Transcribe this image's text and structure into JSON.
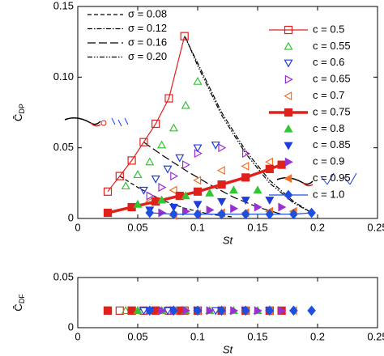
{
  "chart_data": [
    {
      "type": "scatter",
      "xlabel": "St",
      "ylabel": "C̄",
      "ylabel_sub": "DP",
      "xlim": [
        0,
        0.25
      ],
      "ylim": [
        0,
        0.15
      ],
      "xticks": [
        0,
        0.05,
        0.1,
        0.15,
        0.2,
        0.25
      ],
      "yticks": [
        0,
        0.05,
        {
          "value": 0.1,
          "label": "0.10"
        },
        0.15
      ],
      "curves": [
        {
          "name": "σ = 0.08",
          "style": "dash",
          "x": [
            0.035,
            0.05,
            0.07,
            0.09,
            0.11,
            0.13
          ],
          "values": [
            0.03,
            0.022,
            0.013,
            0.007,
            0.003,
            0.001
          ]
        },
        {
          "name": "σ = 0.12",
          "style": "dashdot",
          "x": [
            0.089,
            0.1,
            0.12,
            0.14,
            0.16,
            0.18,
            0.195
          ],
          "values": [
            0.129,
            0.11,
            0.075,
            0.048,
            0.027,
            0.012,
            0.004
          ]
        },
        {
          "name": "σ = 0.16",
          "style": "longdash",
          "x": [
            0.055,
            0.07,
            0.09,
            0.11,
            0.13,
            0.15,
            0.17
          ],
          "values": [
            0.054,
            0.045,
            0.034,
            0.024,
            0.015,
            0.008,
            0.003
          ]
        },
        {
          "name": "σ = 0.20",
          "style": "dashdotdot",
          "x": [
            0.09,
            0.1,
            0.12,
            0.14,
            0.16,
            0.18,
            0.195
          ],
          "values": [
            0.128,
            0.108,
            0.073,
            0.046,
            0.025,
            0.011,
            0.004
          ]
        }
      ],
      "series": [
        {
          "name": "c = 0.5",
          "color": "#e0201b",
          "marker": "square",
          "filled": false,
          "line": true,
          "linewidth": 1.2,
          "x": [
            0.025,
            0.035,
            0.045,
            0.055,
            0.065,
            0.076,
            0.089
          ],
          "values": [
            0.019,
            0.03,
            0.041,
            0.054,
            0.067,
            0.085,
            0.129
          ]
        },
        {
          "name": "c = 0.55",
          "color": "#33c633",
          "marker": "tri-up",
          "filled": false,
          "line": false,
          "x": [
            0.04,
            0.05,
            0.06,
            0.07,
            0.08,
            0.09,
            0.1
          ],
          "values": [
            0.023,
            0.031,
            0.04,
            0.052,
            0.064,
            0.08,
            0.097
          ]
        },
        {
          "name": "c = 0.6",
          "color": "#1e3cdc",
          "marker": "tri-down",
          "filled": false,
          "line": false,
          "x": [
            0.055,
            0.065,
            0.075,
            0.085,
            0.1,
            0.115
          ],
          "values": [
            0.02,
            0.028,
            0.035,
            0.043,
            0.05,
            0.052
          ]
        },
        {
          "name": "c = 0.65",
          "color": "#9b30d0",
          "marker": "tri-right",
          "filled": false,
          "line": false,
          "x": [
            0.06,
            0.07,
            0.08,
            0.09,
            0.1,
            0.12,
            0.14
          ],
          "values": [
            0.016,
            0.022,
            0.03,
            0.038,
            0.046,
            0.05,
            0.046
          ]
        },
        {
          "name": "c = 0.7",
          "color": "#f07020",
          "marker": "tri-left",
          "filled": false,
          "line": false,
          "x": [
            0.06,
            0.08,
            0.1,
            0.12,
            0.14,
            0.16
          ],
          "values": [
            0.012,
            0.02,
            0.027,
            0.034,
            0.037,
            0.04
          ]
        },
        {
          "name": "c = 0.75",
          "color": "#e0201b",
          "marker": "square",
          "filled": true,
          "line": true,
          "linewidth": 3.5,
          "x": [
            0.025,
            0.045,
            0.065,
            0.085,
            0.1,
            0.12,
            0.14,
            0.16,
            0.17
          ],
          "values": [
            0.004,
            0.008,
            0.012,
            0.016,
            0.019,
            0.024,
            0.029,
            0.035,
            0.038
          ]
        },
        {
          "name": "c = 0.8",
          "color": "#33c633",
          "marker": "tri-up",
          "filled": true,
          "line": false,
          "x": [
            0.05,
            0.07,
            0.09,
            0.11,
            0.13,
            0.15
          ],
          "values": [
            0.01,
            0.013,
            0.016,
            0.018,
            0.02,
            0.02
          ]
        },
        {
          "name": "c = 0.85",
          "color": "#1e3cdc",
          "marker": "tri-down",
          "filled": true,
          "line": false,
          "x": [
            0.06,
            0.08,
            0.1,
            0.12,
            0.14,
            0.16
          ],
          "values": [
            0.006,
            0.008,
            0.01,
            0.012,
            0.013,
            0.013
          ]
        },
        {
          "name": "c = 0.9",
          "color": "#9b30d0",
          "marker": "tri-right",
          "filled": true,
          "line": false,
          "x": [
            0.07,
            0.09,
            0.11,
            0.13,
            0.15,
            0.17
          ],
          "values": [
            0.004,
            0.005,
            0.006,
            0.007,
            0.008,
            0.008
          ]
        },
        {
          "name": "c = 0.95",
          "color": "#f07020",
          "marker": "tri-left",
          "filled": true,
          "line": false,
          "x": [
            0.08,
            0.1,
            0.12,
            0.14,
            0.16,
            0.18
          ],
          "values": [
            0.002,
            0.003,
            0.004,
            0.004,
            0.005,
            0.005
          ]
        },
        {
          "name": "c = 1.0",
          "color": "#1e50e0",
          "marker": "diamond",
          "filled": true,
          "line": true,
          "linewidth": 1.2,
          "x": [
            0.06,
            0.08,
            0.1,
            0.12,
            0.14,
            0.16,
            0.18,
            0.195
          ],
          "values": [
            0.004,
            0.003,
            0.003,
            0.003,
            0.003,
            0.003,
            0.003,
            0.004
          ]
        }
      ]
    },
    {
      "type": "scatter",
      "xlabel": "St",
      "ylabel": "C̄",
      "ylabel_sub": "DF",
      "xlim": [
        0,
        0.25
      ],
      "ylim": [
        0,
        0.05
      ],
      "xticks": [
        0,
        0.05,
        0.1,
        0.15,
        0.2,
        0.25
      ],
      "yticks": [
        0,
        0.05
      ],
      "series": [
        {
          "color": "#e0201b",
          "marker": "square",
          "filled": false,
          "x": [
            0.025,
            0.035,
            0.045,
            0.055,
            0.065,
            0.076,
            0.089
          ],
          "values": [
            0.017,
            0.017,
            0.017,
            0.017,
            0.017,
            0.017,
            0.017
          ]
        },
        {
          "color": "#33c633",
          "marker": "tri-up",
          "filled": false,
          "x": [
            0.04,
            0.05,
            0.06,
            0.07,
            0.08,
            0.09,
            0.1
          ],
          "values": [
            0.017,
            0.017,
            0.017,
            0.017,
            0.017,
            0.017,
            0.017
          ]
        },
        {
          "color": "#1e3cdc",
          "marker": "tri-down",
          "filled": false,
          "x": [
            0.055,
            0.065,
            0.075,
            0.085,
            0.1,
            0.115
          ],
          "values": [
            0.017,
            0.017,
            0.017,
            0.017,
            0.017,
            0.017
          ]
        },
        {
          "color": "#9b30d0",
          "marker": "tri-right",
          "filled": false,
          "x": [
            0.06,
            0.07,
            0.08,
            0.09,
            0.1,
            0.12,
            0.14
          ],
          "values": [
            0.017,
            0.017,
            0.017,
            0.017,
            0.017,
            0.017,
            0.017
          ]
        },
        {
          "color": "#f07020",
          "marker": "tri-left",
          "filled": false,
          "x": [
            0.06,
            0.08,
            0.1,
            0.12,
            0.14,
            0.16
          ],
          "values": [
            0.017,
            0.017,
            0.017,
            0.017,
            0.017,
            0.017
          ]
        },
        {
          "color": "#e0201b",
          "marker": "square",
          "filled": true,
          "x": [
            0.025,
            0.045,
            0.065,
            0.085,
            0.1,
            0.12,
            0.14,
            0.16,
            0.17
          ],
          "values": [
            0.017,
            0.017,
            0.017,
            0.017,
            0.017,
            0.017,
            0.017,
            0.017,
            0.017
          ]
        },
        {
          "color": "#33c633",
          "marker": "tri-up",
          "filled": true,
          "x": [
            0.05,
            0.07,
            0.09,
            0.11,
            0.13,
            0.15
          ],
          "values": [
            0.017,
            0.017,
            0.017,
            0.017,
            0.017,
            0.017
          ]
        },
        {
          "color": "#1e3cdc",
          "marker": "tri-down",
          "filled": true,
          "x": [
            0.06,
            0.08,
            0.1,
            0.12,
            0.14,
            0.16
          ],
          "values": [
            0.017,
            0.017,
            0.017,
            0.017,
            0.017,
            0.017
          ]
        },
        {
          "color": "#9b30d0",
          "marker": "tri-right",
          "filled": true,
          "x": [
            0.07,
            0.09,
            0.11,
            0.13,
            0.15,
            0.17
          ],
          "values": [
            0.017,
            0.017,
            0.017,
            0.017,
            0.017,
            0.017
          ]
        },
        {
          "color": "#f07020",
          "marker": "tri-left",
          "filled": true,
          "x": [
            0.08,
            0.1,
            0.12,
            0.14,
            0.16,
            0.18
          ],
          "values": [
            0.017,
            0.017,
            0.017,
            0.017,
            0.017,
            0.017
          ]
        },
        {
          "color": "#1e50e0",
          "marker": "diamond",
          "filled": true,
          "x": [
            0.06,
            0.08,
            0.1,
            0.12,
            0.14,
            0.16,
            0.18,
            0.195
          ],
          "values": [
            0.017,
            0.017,
            0.017,
            0.017,
            0.017,
            0.017,
            0.017,
            0.017
          ]
        }
      ]
    }
  ]
}
